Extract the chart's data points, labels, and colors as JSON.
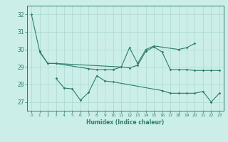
{
  "xlabel": "Humidex (Indice chaleur)",
  "x": [
    0,
    1,
    2,
    3,
    4,
    5,
    6,
    7,
    8,
    9,
    10,
    11,
    12,
    13,
    14,
    15,
    16,
    17,
    18,
    19,
    20,
    21,
    22,
    23
  ],
  "series1_x": [
    0,
    1,
    2,
    3,
    11,
    12,
    13,
    14,
    15,
    18,
    19,
    20
  ],
  "series1_y": [
    32.0,
    29.9,
    29.2,
    29.2,
    29.0,
    30.1,
    29.2,
    30.0,
    30.2,
    30.0,
    30.1,
    30.35
  ],
  "series2_x": [
    1,
    2,
    3,
    7,
    8,
    9,
    10,
    11,
    12,
    13,
    14,
    15,
    16,
    17,
    18,
    19,
    20,
    21,
    22,
    23
  ],
  "series2_y": [
    29.85,
    29.2,
    29.2,
    28.9,
    28.85,
    28.85,
    28.85,
    29.0,
    28.95,
    29.1,
    29.9,
    30.15,
    29.85,
    28.85,
    28.85,
    28.85,
    28.8,
    28.8,
    28.8,
    28.8
  ],
  "series3_x": [
    3,
    4,
    5,
    6,
    7,
    8,
    9,
    10,
    16,
    17,
    18,
    19,
    20,
    21,
    22,
    23
  ],
  "series3_y": [
    28.35,
    27.8,
    27.75,
    27.1,
    27.55,
    28.5,
    28.2,
    28.15,
    27.65,
    27.5,
    27.5,
    27.5,
    27.5,
    27.6,
    27.0,
    27.5
  ],
  "line_color": "#2a7d6e",
  "bg_color": "#cceee8",
  "grid_color": "#aad8d0",
  "ylim": [
    26.5,
    32.5
  ],
  "yticks": [
    27,
    28,
    29,
    30,
    31,
    32
  ],
  "xlim": [
    -0.5,
    23.5
  ]
}
